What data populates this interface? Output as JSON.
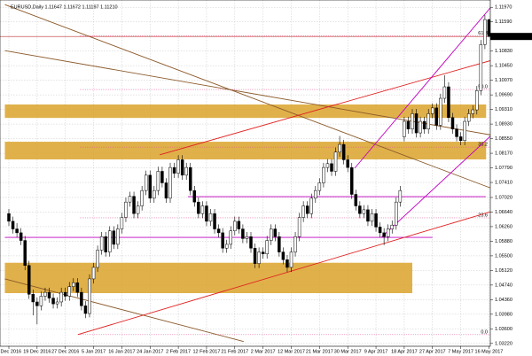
{
  "chart_data": {
    "type": "candlestick",
    "title": "EURUSD,Daily 1.11647 1.11672 1.11197 1.11210",
    "ylim": [
      1.0317,
      1.1209
    ],
    "yticks": [
      {
        "value": 1.1197,
        "label": "1.11970"
      },
      {
        "value": 1.1159,
        "label": "1.11590"
      },
      {
        "value": 1.1083,
        "label": "1.10830"
      },
      {
        "value": 1.1045,
        "label": "1.10450"
      },
      {
        "value": 1.1007,
        "label": "1.10070"
      },
      {
        "value": 1.0969,
        "label": "1.09690"
      },
      {
        "value": 1.0931,
        "label": "1.09310"
      },
      {
        "value": 1.0893,
        "label": "1.08930"
      },
      {
        "value": 1.0855,
        "label": "1.08550"
      },
      {
        "value": 1.0817,
        "label": "1.08170"
      },
      {
        "value": 1.0779,
        "label": "1.07790"
      },
      {
        "value": 1.0741,
        "label": "1.07410"
      },
      {
        "value": 1.0702,
        "label": "1.07020"
      },
      {
        "value": 1.0664,
        "label": "1.06640"
      },
      {
        "value": 1.0626,
        "label": "1.06260"
      },
      {
        "value": 1.0588,
        "label": "1.05880"
      },
      {
        "value": 1.055,
        "label": "1.05500"
      },
      {
        "value": 1.0512,
        "label": "1.05120"
      },
      {
        "value": 1.0474,
        "label": "1.04740"
      },
      {
        "value": 1.0436,
        "label": "1.04360"
      },
      {
        "value": 1.0398,
        "label": "1.03980"
      },
      {
        "value": 1.036,
        "label": "1.03600"
      },
      {
        "value": 1.0322,
        "label": "1.03220"
      }
    ],
    "x_labels": [
      "8 Dec 2016",
      "19 Dec 2016",
      "27 Dec 2016",
      "5 Jan 2017",
      "16 Jan 2017",
      "24 Jan 2017",
      "2 Feb 2017",
      "12 Feb 2017",
      "21 Feb 2017",
      "2 Mar 2017",
      "12 Mar 2017",
      "21 Mar 2017",
      "30 Mar 2017",
      "9 Apr 2017",
      "18 Apr 2017",
      "27 Apr 2017",
      "7 May 2017",
      "16 May 2017"
    ],
    "grid": true,
    "current_price": {
      "value": 1.1121,
      "label": "1.11210"
    },
    "up_color": "#ffffff",
    "down_color": "#000000",
    "ohlc": [
      [
        1.066,
        1.0672,
        1.0628,
        1.064
      ],
      [
        1.064,
        1.0652,
        1.0608,
        1.062
      ],
      [
        1.062,
        1.0635,
        1.0598,
        1.061
      ],
      [
        1.061,
        1.0622,
        1.0578,
        1.059
      ],
      [
        1.059,
        1.0602,
        1.0513,
        1.0525
      ],
      [
        1.0525,
        1.0537,
        1.0438,
        1.045
      ],
      [
        1.045,
        1.0462,
        1.0395,
        1.043
      ],
      [
        1.043,
        1.0442,
        1.0372,
        1.042
      ],
      [
        1.042,
        1.0457,
        1.0408,
        1.0445
      ],
      [
        1.0445,
        1.0467,
        1.0433,
        1.0455
      ],
      [
        1.0455,
        1.0467,
        1.0428,
        1.044
      ],
      [
        1.044,
        1.0452,
        1.0413,
        1.0425
      ],
      [
        1.0425,
        1.0442,
        1.0413,
        1.043
      ],
      [
        1.043,
        1.0467,
        1.0418,
        1.0455
      ],
      [
        1.0455,
        1.0467,
        1.0433,
        1.0445
      ],
      [
        1.0445,
        1.0482,
        1.0433,
        1.047
      ],
      [
        1.047,
        1.0492,
        1.0458,
        1.048
      ],
      [
        1.048,
        1.0492,
        1.0443,
        1.0455
      ],
      [
        1.0455,
        1.0467,
        1.0408,
        1.042
      ],
      [
        1.042,
        1.0432,
        1.0388,
        1.04
      ],
      [
        1.04,
        1.0502,
        1.039,
        1.049
      ],
      [
        1.049,
        1.0532,
        1.0478,
        1.052
      ],
      [
        1.052,
        1.0577,
        1.0508,
        1.0565
      ],
      [
        1.0565,
        1.0612,
        1.0553,
        1.06
      ],
      [
        1.06,
        1.0612,
        1.0548,
        1.056
      ],
      [
        1.056,
        1.0627,
        1.0548,
        1.0615
      ],
      [
        1.0615,
        1.0627,
        1.0568,
        1.058
      ],
      [
        1.058,
        1.0632,
        1.0568,
        1.062
      ],
      [
        1.062,
        1.0662,
        1.0608,
        1.065
      ],
      [
        1.065,
        1.0702,
        1.0638,
        1.069
      ],
      [
        1.069,
        1.0717,
        1.0678,
        1.0705
      ],
      [
        1.0705,
        1.0717,
        1.0648,
        1.066
      ],
      [
        1.066,
        1.0692,
        1.0648,
        1.068
      ],
      [
        1.068,
        1.0732,
        1.0668,
        1.072
      ],
      [
        1.072,
        1.0772,
        1.0708,
        1.076
      ],
      [
        1.076,
        1.0772,
        1.0688,
        1.07
      ],
      [
        1.07,
        1.0732,
        1.0688,
        1.072
      ],
      [
        1.072,
        1.0782,
        1.0708,
        1.077
      ],
      [
        1.077,
        1.0782,
        1.0728,
        1.074
      ],
      [
        1.074,
        1.0752,
        1.0688,
        1.07
      ],
      [
        1.07,
        1.0792,
        1.0688,
        1.078
      ],
      [
        1.078,
        1.0792,
        1.0753,
        1.0765
      ],
      [
        1.0765,
        1.0812,
        1.0753,
        1.08
      ],
      [
        1.08,
        1.0812,
        1.0748,
        1.076
      ],
      [
        1.076,
        1.0792,
        1.0748,
        1.078
      ],
      [
        1.078,
        1.0792,
        1.0708,
        1.072
      ],
      [
        1.072,
        1.0732,
        1.0678,
        1.069
      ],
      [
        1.069,
        1.0702,
        1.0648,
        1.066
      ],
      [
        1.066,
        1.0692,
        1.0648,
        1.068
      ],
      [
        1.068,
        1.0692,
        1.0628,
        1.064
      ],
      [
        1.064,
        1.0672,
        1.0628,
        1.066
      ],
      [
        1.066,
        1.0672,
        1.0608,
        1.062
      ],
      [
        1.062,
        1.0632,
        1.0598,
        1.061
      ],
      [
        1.061,
        1.0622,
        1.0558,
        1.057
      ],
      [
        1.057,
        1.0592,
        1.0558,
        1.058
      ],
      [
        1.058,
        1.0627,
        1.0568,
        1.0615
      ],
      [
        1.0615,
        1.0652,
        1.0603,
        1.064
      ],
      [
        1.064,
        1.0652,
        1.0608,
        1.062
      ],
      [
        1.062,
        1.0632,
        1.0583,
        1.0595
      ],
      [
        1.0595,
        1.0612,
        1.0583,
        1.06
      ],
      [
        1.06,
        1.0612,
        1.0558,
        1.057
      ],
      [
        1.057,
        1.0582,
        1.0518,
        1.053
      ],
      [
        1.053,
        1.0572,
        1.0518,
        1.056
      ],
      [
        1.056,
        1.0572,
        1.0543,
        1.0555
      ],
      [
        1.0555,
        1.0602,
        1.0543,
        1.059
      ],
      [
        1.059,
        1.0632,
        1.0578,
        1.062
      ],
      [
        1.062,
        1.0632,
        1.0588,
        1.06
      ],
      [
        1.06,
        1.0612,
        1.0548,
        1.056
      ],
      [
        1.056,
        1.0572,
        1.0528,
        1.054
      ],
      [
        1.054,
        1.0552,
        1.0508,
        1.052
      ],
      [
        1.052,
        1.0572,
        1.0508,
        1.056
      ],
      [
        1.056,
        1.0612,
        1.0548,
        1.06
      ],
      [
        1.06,
        1.0662,
        1.0588,
        1.065
      ],
      [
        1.065,
        1.0692,
        1.0638,
        1.068
      ],
      [
        1.068,
        1.0692,
        1.0648,
        1.066
      ],
      [
        1.066,
        1.0712,
        1.0648,
        1.07
      ],
      [
        1.07,
        1.0732,
        1.0688,
        1.072
      ],
      [
        1.072,
        1.0752,
        1.0708,
        1.074
      ],
      [
        1.074,
        1.0792,
        1.0728,
        1.078
      ],
      [
        1.078,
        1.0802,
        1.0768,
        1.079
      ],
      [
        1.079,
        1.0802,
        1.0758,
        1.077
      ],
      [
        1.077,
        1.0832,
        1.0758,
        1.082
      ],
      [
        1.082,
        1.0862,
        1.0808,
        1.084
      ],
      [
        1.084,
        1.0852,
        1.0788,
        1.08
      ],
      [
        1.08,
        1.0812,
        1.0768,
        1.078
      ],
      [
        1.078,
        1.0792,
        1.0698,
        1.071
      ],
      [
        1.071,
        1.0722,
        1.0668,
        1.068
      ],
      [
        1.068,
        1.0692,
        1.0648,
        1.066
      ],
      [
        1.066,
        1.0682,
        1.0648,
        1.067
      ],
      [
        1.067,
        1.0682,
        1.0628,
        1.064
      ],
      [
        1.064,
        1.0672,
        1.0628,
        1.066
      ],
      [
        1.066,
        1.0672,
        1.0613,
        1.0625
      ],
      [
        1.0625,
        1.0637,
        1.0598,
        1.061
      ],
      [
        1.061,
        1.0622,
        1.0578,
        1.06
      ],
      [
        1.06,
        1.0632,
        1.0588,
        1.062
      ],
      [
        1.062,
        1.0642,
        1.0608,
        1.063
      ],
      [
        1.063,
        1.0702,
        1.0618,
        1.069
      ],
      [
        1.069,
        1.0732,
        1.0678,
        1.072
      ],
      [
        1.086,
        1.0912,
        1.0848,
        1.09
      ],
      [
        1.09,
        1.0912,
        1.0868,
        1.088
      ],
      [
        1.088,
        1.0932,
        1.0868,
        1.092
      ],
      [
        1.092,
        1.0932,
        1.0858,
        1.087
      ],
      [
        1.087,
        1.0912,
        1.0858,
        1.09
      ],
      [
        1.09,
        1.0912,
        1.0868,
        1.088
      ],
      [
        1.088,
        1.0932,
        1.0868,
        1.092
      ],
      [
        1.092,
        1.0947,
        1.0908,
        1.0935
      ],
      [
        1.0935,
        1.0947,
        1.0878,
        1.089
      ],
      [
        1.089,
        1.0972,
        1.0878,
        1.096
      ],
      [
        1.096,
        1.102,
        1.0948,
        1.099
      ],
      [
        1.099,
        1.1002,
        1.0898,
        1.091
      ],
      [
        1.091,
        1.0922,
        1.0868,
        1.088
      ],
      [
        1.088,
        1.0892,
        1.0848,
        1.086
      ],
      [
        1.086,
        1.0872,
        1.0838,
        1.085
      ],
      [
        1.085,
        1.0912,
        1.0838,
        1.09
      ],
      [
        1.09,
        1.0932,
        1.0888,
        1.092
      ],
      [
        1.092,
        1.0942,
        1.0908,
        1.093
      ],
      [
        1.093,
        1.0992,
        1.0918,
        1.098
      ],
      [
        1.098,
        1.1112,
        1.0968,
        1.11
      ],
      [
        1.11,
        1.1177,
        1.1088,
        1.1165
      ],
      [
        1.11647,
        1.11672,
        1.11197,
        1.1121
      ]
    ],
    "zones": [
      {
        "low": 1.0909,
        "high": 1.0944,
        "from": -1,
        "to": 118.3,
        "color": "#dba32a"
      },
      {
        "low": 1.0801,
        "high": 1.0847,
        "from": -1,
        "to": 118.3,
        "color": "#dba32a"
      },
      {
        "low": 1.0453,
        "high": 1.0532,
        "from": -1,
        "to": 100,
        "color": "#dba32a"
      }
    ],
    "levels": [
      {
        "price": 1.0704,
        "from": 44.4,
        "to": 118.2,
        "color": "#c000c0"
      },
      {
        "price": 1.0598,
        "from": -1,
        "to": 105,
        "color": "#c000c0"
      }
    ],
    "trendlines": [
      {
        "points": [
          [
            -1,
            1.1204
          ],
          [
            119.3,
            1.0727
          ]
        ],
        "color": "#8b5a2b"
      },
      {
        "points": [
          [
            -1,
            1.1084
          ],
          [
            119.3,
            1.0865
          ]
        ],
        "color": "#8b5a2b"
      },
      {
        "points": [
          [
            -1,
            1.049
          ],
          [
            58.2,
            1.0327
          ]
        ],
        "color": "#8b5a2b"
      },
      {
        "points": [
          [
            17.1,
            1.0345
          ],
          [
            129.7,
            1.0697
          ]
        ],
        "color": "#e02020"
      },
      {
        "points": [
          [
            37.4,
            1.0813
          ],
          [
            129.7,
            1.1089
          ]
        ],
        "color": "#e02020"
      },
      {
        "points": [
          [
            85.7,
            1.0778
          ],
          [
            120.9,
            1.1215
          ]
        ],
        "color": "#c000c0"
      },
      {
        "points": [
          [
            92.3,
            1.0598
          ],
          [
            129.7,
            1.0962
          ]
        ],
        "color": "#c000c0"
      }
    ],
    "fib_levels": [
      {
        "price": 1.1123,
        "label": "61.8"
      },
      {
        "price": 1.0983,
        "label": "50.0"
      },
      {
        "price": 1.0833,
        "label": "38.2"
      },
      {
        "price": 1.0649,
        "label": "23.6"
      },
      {
        "price": 1.0345,
        "label": "0.0"
      }
    ],
    "fib_color": "#e05090"
  }
}
